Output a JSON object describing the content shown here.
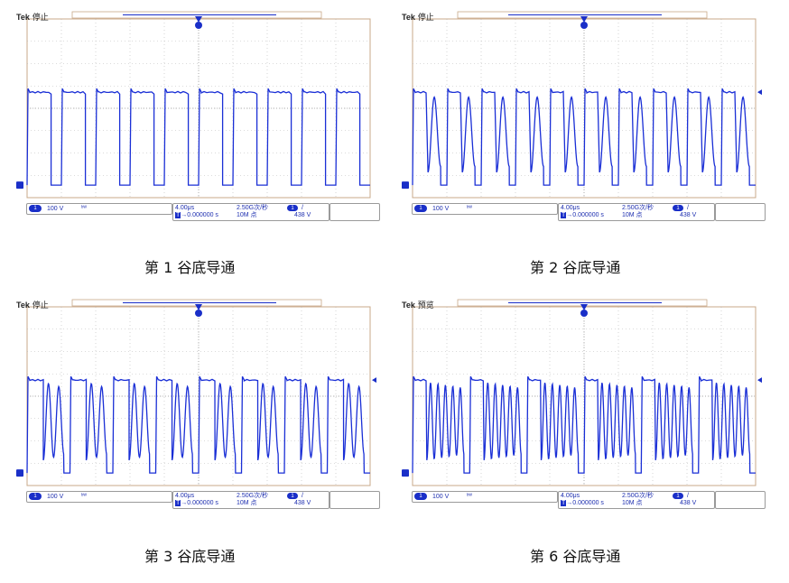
{
  "scopes": [
    {
      "brand": "Tek",
      "mode": "停止",
      "ch_label": "1",
      "ch_scale": "100 V",
      "bw_icon": "bandwidth-icon",
      "time_div": "4.00μs",
      "sample_rate": "2.50G次/秒",
      "trig_ch": "1",
      "trig_slope": "/",
      "trig_delay": "→0.000000 s",
      "record_len": "10M 点",
      "trig_level": "438 V",
      "caption": "第 1 谷底导通",
      "ring_count": 0
    },
    {
      "brand": "Tek",
      "mode": "停止",
      "ch_label": "1",
      "ch_scale": "100 V",
      "bw_icon": "bandwidth-icon",
      "time_div": "4.00μs",
      "sample_rate": "2.50G次/秒",
      "trig_ch": "1",
      "trig_slope": "/",
      "trig_delay": "→0.000000 s",
      "record_len": "10M 点",
      "trig_level": "438 V",
      "caption": "第 2 谷底导通",
      "ring_count": 1
    },
    {
      "brand": "Tek",
      "mode": "停止",
      "ch_label": "1",
      "ch_scale": "100 V",
      "bw_icon": "bandwidth-icon",
      "time_div": "4.00μs",
      "sample_rate": "2.50G次/秒",
      "trig_ch": "1",
      "trig_slope": "/",
      "trig_delay": "→0.000000 s",
      "record_len": "10M 点",
      "trig_level": "438 V",
      "caption": "第 3 谷底导通",
      "ring_count": 2
    },
    {
      "brand": "Tek",
      "mode": "预览",
      "ch_label": "1",
      "ch_scale": "100 V",
      "bw_icon": "bandwidth-icon",
      "time_div": "4.00μs",
      "sample_rate": "2.50G次/秒",
      "trig_ch": "1",
      "trig_slope": "/",
      "trig_delay": "→0.000000 s",
      "record_len": "10M 点",
      "trig_level": "438 V",
      "caption": "第 6 谷底导通",
      "ring_count": 5
    }
  ],
  "colors": {
    "trace": "#1a2fd6",
    "grid": "#b8b8b8",
    "frame": "#c8a888",
    "marker": "#1a2fc8"
  }
}
